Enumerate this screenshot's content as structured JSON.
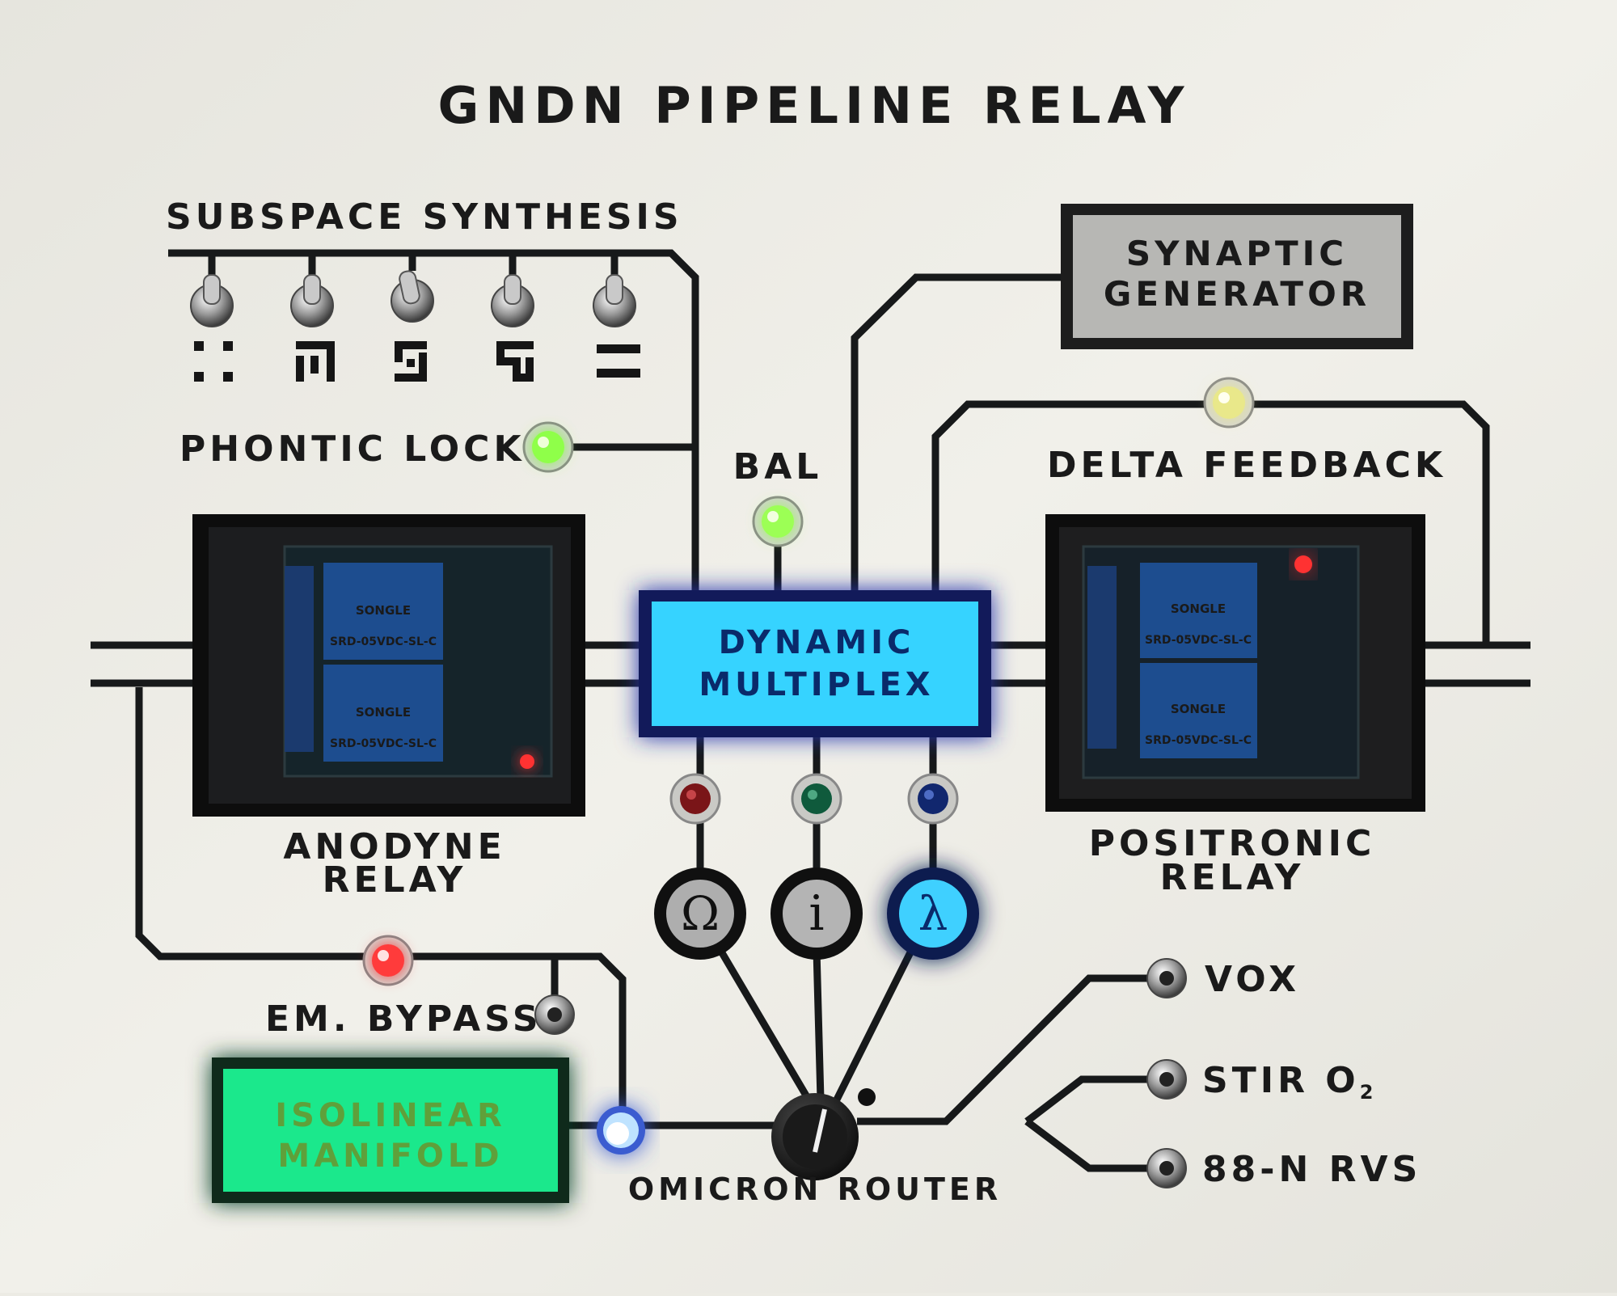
{
  "panel": {
    "title": "GNDN PIPELINE RELAY",
    "colors": {
      "background": "#ecebe4",
      "wire": "#17191a",
      "multiplex_blue": "#36d3ff",
      "manifold_green": "#1be88c",
      "synaptic_grey": "#b7b7b4",
      "led_green": "#8fff4a",
      "led_red": "#ff3a3a",
      "led_yellow": "#e9e88a",
      "led_blue": "#66c8ff"
    }
  },
  "subspace": {
    "label": "SUBSPACE SYNTHESIS",
    "switch_count": 5,
    "glyph_icons": [
      "dots-glyph-icon",
      "hook-glyph-icon",
      "box-glyph-icon",
      "s-glyph-icon",
      "bars-glyph-icon"
    ]
  },
  "indicators": {
    "phontic_lock": "PHONTIC LOCK",
    "bal": "BAL",
    "delta_feedback": "DELTA FEEDBACK"
  },
  "modules": {
    "synaptic": {
      "line1": "SYNAPTIC",
      "line2": "GENERATOR"
    },
    "multiplex": {
      "line1": "DYNAMIC",
      "line2": "MULTIPLEX"
    },
    "manifold": {
      "line1": "ISOLINEAR",
      "line2": "MANIFOLD"
    }
  },
  "relays": {
    "anodyne": {
      "line1": "ANODYNE",
      "line2": "RELAY"
    },
    "positronic": {
      "line1": "POSITRONIC",
      "line2": "RELAY"
    },
    "relay_label_1": "SRD-05VDC-SL-C",
    "relay_label_2": "SRD-05VDC-SL-C",
    "relay_brand": "SONGLE"
  },
  "buttons": {
    "omega": "Ω",
    "info": "i",
    "lambda": "λ"
  },
  "bypass": {
    "label": "EM. BYPASS"
  },
  "router": {
    "label": "OMICRON ROUTER"
  },
  "switches_right": {
    "vox": "VOX",
    "stir_prefix": "STIR O",
    "stir_sub": "2",
    "rvs": "88-N RVS"
  }
}
